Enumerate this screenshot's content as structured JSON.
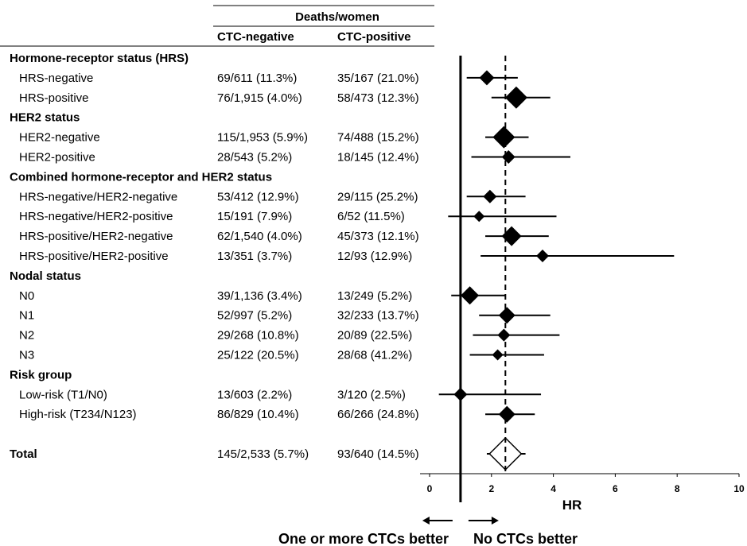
{
  "chart_data": {
    "type": "forest",
    "header": {
      "group_label": "Deaths/women",
      "col1": "CTC-negative",
      "col2": "CTC-positive"
    },
    "rows": [
      {
        "kind": "section",
        "label": "Hormone-receptor status (HRS)"
      },
      {
        "kind": "row",
        "label": "HRS-negative",
        "neg": "69/611 (11.3%)",
        "pos": "35/167 (21.0%)",
        "hr": 1.85,
        "lo": 1.2,
        "hi": 2.85,
        "weight": 0.55
      },
      {
        "kind": "row",
        "label": "HRS-positive",
        "neg": "76/1,915 (4.0%)",
        "pos": "58/473 (12.3%)",
        "hr": 2.8,
        "lo": 2.0,
        "hi": 3.9,
        "weight": 1.0
      },
      {
        "kind": "section",
        "label": "HER2 status"
      },
      {
        "kind": "row",
        "label": "HER2-negative",
        "neg": "115/1,953 (5.9%)",
        "pos": "74/488 (15.2%)",
        "hr": 2.4,
        "lo": 1.8,
        "hi": 3.2,
        "weight": 1.0
      },
      {
        "kind": "row",
        "label": "HER2-positive",
        "neg": "28/543 (5.2%)",
        "pos": "18/145 (12.4%)",
        "hr": 2.55,
        "lo": 1.35,
        "hi": 4.55,
        "weight": 0.45
      },
      {
        "kind": "section",
        "label": "Combined hormone-receptor and HER2 status"
      },
      {
        "kind": "row",
        "label": "HRS-negative/HER2-negative",
        "neg": "53/412 (12.9%)",
        "pos": "29/115 (25.2%)",
        "hr": 1.95,
        "lo": 1.2,
        "hi": 3.1,
        "weight": 0.45
      },
      {
        "kind": "row",
        "label": "HRS-negative/HER2-positive",
        "neg": "15/191 (7.9%)",
        "pos": "6/52 (11.5%)",
        "hr": 1.6,
        "lo": 0.6,
        "hi": 4.1,
        "weight": 0.3
      },
      {
        "kind": "row",
        "label": "HRS-positive/HER2-negative",
        "neg": "62/1,540 (4.0%)",
        "pos": "45/373 (12.1%)",
        "hr": 2.65,
        "lo": 1.8,
        "hi": 3.85,
        "weight": 0.85
      },
      {
        "kind": "row",
        "label": "HRS-positive/HER2-positive",
        "neg": "13/351 (3.7%)",
        "pos": "12/93 (12.9%)",
        "hr": 3.65,
        "lo": 1.65,
        "hi": 7.9,
        "weight": 0.4
      },
      {
        "kind": "section",
        "label": "Nodal status"
      },
      {
        "kind": "row",
        "label": "N0",
        "neg": "39/1,136 (3.4%)",
        "pos": "13/249 (5.2%)",
        "hr": 1.3,
        "lo": 0.7,
        "hi": 2.45,
        "weight": 0.75
      },
      {
        "kind": "row",
        "label": "N1",
        "neg": "52/997 (5.2%)",
        "pos": "32/233 (13.7%)",
        "hr": 2.5,
        "lo": 1.6,
        "hi": 3.9,
        "weight": 0.65
      },
      {
        "kind": "row",
        "label": "N2",
        "neg": "29/268 (10.8%)",
        "pos": "20/89 (22.5%)",
        "hr": 2.4,
        "lo": 1.4,
        "hi": 4.2,
        "weight": 0.4
      },
      {
        "kind": "row",
        "label": "N3",
        "neg": "25/122 (20.5%)",
        "pos": "28/68 (41.2%)",
        "hr": 2.2,
        "lo": 1.3,
        "hi": 3.7,
        "weight": 0.3
      },
      {
        "kind": "section",
        "label": "Risk group"
      },
      {
        "kind": "row",
        "label": "Low-risk (T1/N0)",
        "neg": "13/603 (2.2%)",
        "pos": "3/120 (2.5%)",
        "hr": 1.0,
        "lo": 0.3,
        "hi": 3.6,
        "weight": 0.45
      },
      {
        "kind": "row",
        "label": "High-risk (T234/N123)",
        "neg": "86/829 (10.4%)",
        "pos": "66/266 (24.8%)",
        "hr": 2.5,
        "lo": 1.8,
        "hi": 3.4,
        "weight": 0.65
      },
      {
        "kind": "spacer"
      },
      {
        "kind": "total",
        "label": "Total",
        "neg": "145/2,533 (5.7%)",
        "pos": "93/640 (14.5%)",
        "hr": 2.45,
        "lo": 1.85,
        "hi": 3.1
      }
    ],
    "x_axis": {
      "label": "HR",
      "ticks": [
        0,
        2,
        4,
        6,
        8,
        10
      ],
      "range": [
        0,
        10
      ]
    },
    "reference_lines": {
      "null_effect": 1,
      "overall_estimate": 2.45
    },
    "direction_labels": {
      "left": "One or more CTCs better",
      "right": "No CTCs better"
    },
    "colors": {
      "marker": "#000000",
      "total_marker_fill": "#ffffff",
      "line": "#000000"
    }
  }
}
